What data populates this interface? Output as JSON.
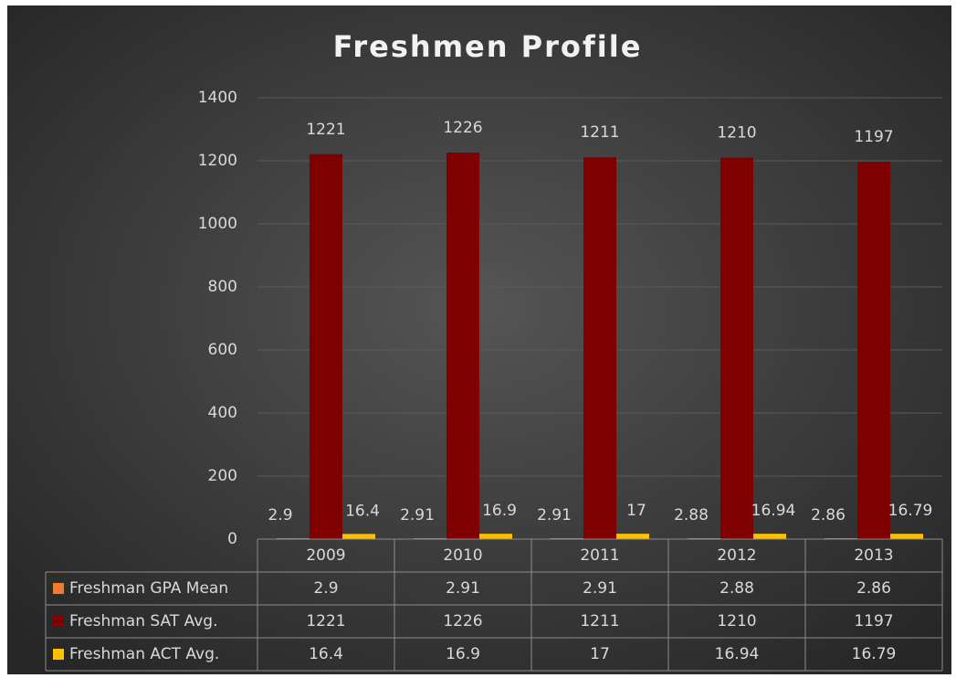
{
  "chart_data": {
    "type": "bar",
    "title": "Freshmen Profile",
    "categories": [
      "2009",
      "2010",
      "2011",
      "2012",
      "2013"
    ],
    "series": [
      {
        "name": "Freshman GPA Mean",
        "color": "#ed7d31",
        "values": [
          2.9,
          2.91,
          2.91,
          2.88,
          2.86
        ]
      },
      {
        "name": "Freshman SAT Avg.",
        "color": "#7f0000",
        "values": [
          1221,
          1226,
          1211,
          1210,
          1197
        ]
      },
      {
        "name": "Freshman ACT Avg.",
        "color": "#ffc000",
        "values": [
          16.4,
          16.9,
          17,
          16.94,
          16.79
        ]
      }
    ],
    "ylim": [
      0,
      1400
    ],
    "yticks": [
      0,
      200,
      400,
      600,
      800,
      1000,
      1200,
      1400
    ],
    "grid": true
  }
}
